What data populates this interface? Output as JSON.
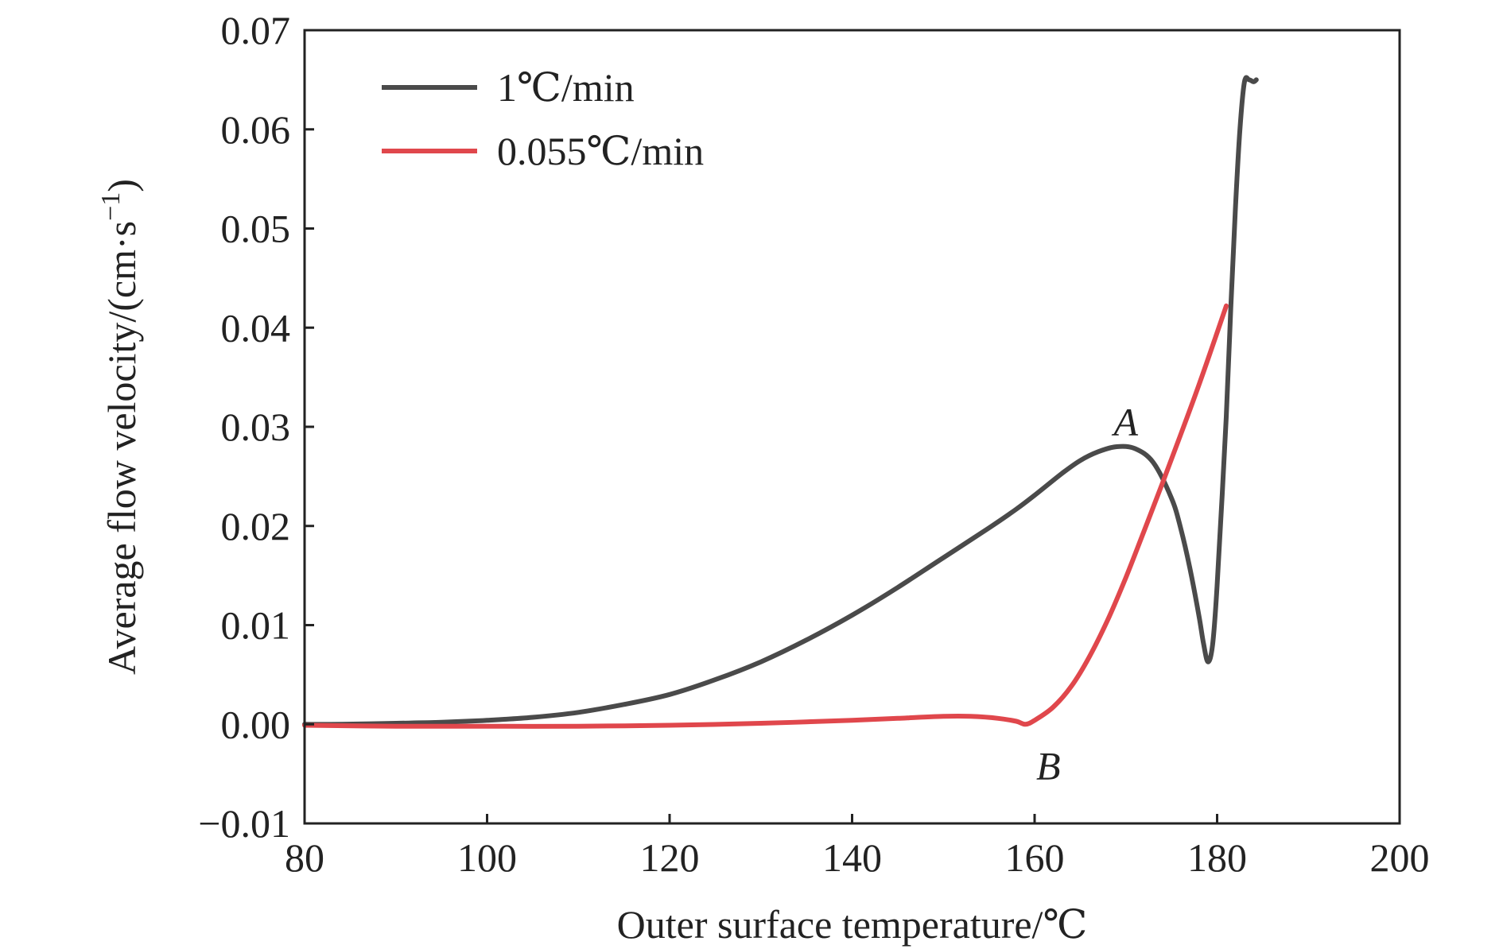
{
  "chart_data": {
    "type": "line",
    "xlabel": "Outer surface temperature/℃",
    "ylabel": "Average flow velocity/(cm·s",
    "ylabel_sup": "−1",
    "ylabel_close": ")",
    "xlim": [
      80,
      200
    ],
    "ylim": [
      -0.01,
      0.07
    ],
    "xticks": [
      80,
      100,
      120,
      140,
      160,
      180,
      200
    ],
    "xtick_labels": [
      "80",
      "100",
      "120",
      "140",
      "160",
      "180",
      "200"
    ],
    "yticks": [
      -0.01,
      0.0,
      0.01,
      0.02,
      0.03,
      0.04,
      0.05,
      0.06,
      0.07
    ],
    "ytick_labels": [
      "−0.01",
      "0.00",
      "0.01",
      "0.02",
      "0.03",
      "0.04",
      "0.05",
      "0.06",
      "0.07"
    ],
    "grid": false,
    "legend": "top-left",
    "series": [
      {
        "name": "1℃/min",
        "color": "#4a4a4a",
        "x": [
          80,
          84,
          90,
          95,
          100,
          105,
          110,
          115,
          120,
          125,
          130,
          135,
          140,
          145,
          150,
          155,
          158,
          160,
          163,
          165,
          167,
          169,
          171,
          173,
          175,
          176,
          177,
          178,
          178.5,
          179,
          179.5,
          180,
          181,
          181.5,
          182,
          182.5,
          183,
          183.5,
          184,
          184.3
        ],
        "y": [
          0.0,
          0.0,
          0.0001,
          0.0002,
          0.0004,
          0.0007,
          0.0012,
          0.002,
          0.003,
          0.0045,
          0.0063,
          0.0085,
          0.011,
          0.0138,
          0.0168,
          0.0198,
          0.0217,
          0.0231,
          0.0253,
          0.0266,
          0.0275,
          0.028,
          0.0278,
          0.0264,
          0.0228,
          0.0198,
          0.0158,
          0.011,
          0.0082,
          0.0063,
          0.008,
          0.014,
          0.031,
          0.042,
          0.052,
          0.06,
          0.0648,
          0.065,
          0.0648,
          0.065
        ]
      },
      {
        "name": "0.055℃/min",
        "color": "#e0474c",
        "x": [
          80,
          90,
          100,
          110,
          120,
          130,
          140,
          145,
          150,
          153,
          156,
          158,
          159,
          160,
          162,
          164,
          166,
          168,
          170,
          172,
          174,
          176,
          178,
          180,
          181
        ],
        "y": [
          -0.0001,
          -0.0002,
          -0.0002,
          -0.0002,
          -0.0001,
          0.0001,
          0.0004,
          0.0006,
          0.0008,
          0.0008,
          0.0006,
          0.0003,
          0.0,
          0.0004,
          0.0017,
          0.0038,
          0.0068,
          0.0105,
          0.0148,
          0.0195,
          0.0243,
          0.0292,
          0.0342,
          0.0395,
          0.0422
        ]
      }
    ],
    "annotations": [
      {
        "text": "A",
        "x": 170,
        "y": 0.0305
      },
      {
        "text": "B",
        "x": 161.5,
        "y": -0.0042
      }
    ]
  }
}
